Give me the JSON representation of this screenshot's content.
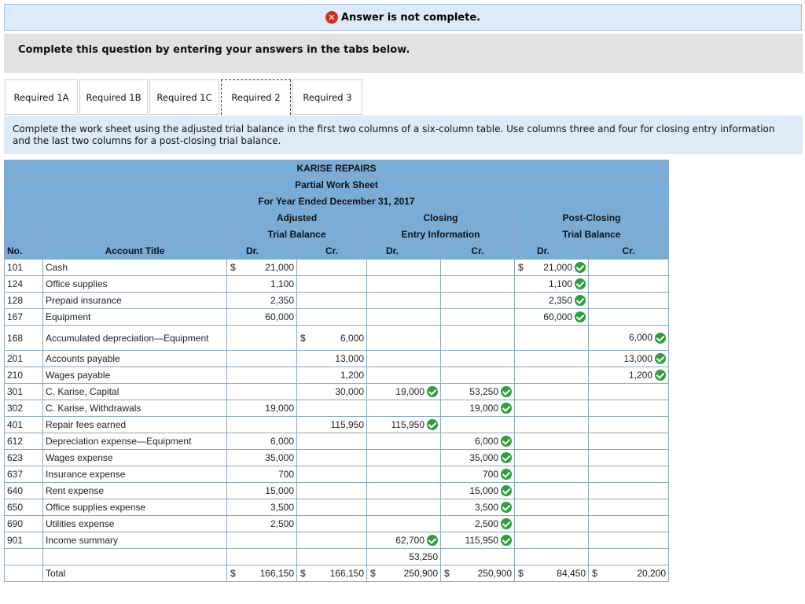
{
  "banner": {
    "icon": "close-circle-icon",
    "text": "Answer is not complete."
  },
  "question": {
    "text": "Complete this question by entering your answers in the tabs below."
  },
  "tabs": [
    {
      "label": "Required 1A",
      "active": false
    },
    {
      "label": "Required 1B",
      "active": false
    },
    {
      "label": "Required 1C",
      "active": false
    },
    {
      "label": "Required 2",
      "active": true
    },
    {
      "label": "Required 3",
      "active": false
    }
  ],
  "instructions": "Complete the work sheet using the adjusted trial balance in the first two columns of a six-column table. Use columns three and four for closing entry information and the last two columns for a post-closing trial balance.",
  "worksheet": {
    "company": "KARISE REPAIRS",
    "title": "Partial Work Sheet",
    "period": "For Year Ended December 31, 2017",
    "group_adjusted_1": "Adjusted",
    "group_adjusted_2": "Trial Balance",
    "group_closing_1": "Closing",
    "group_closing_2": "Entry Information",
    "group_post_1": "Post-Closing",
    "group_post_2": "Trial Balance",
    "col_no": "No.",
    "col_title": "Account Title",
    "col_dr": "Dr.",
    "col_cr": "Cr.",
    "rows": [
      {
        "no": "101",
        "title": "Cash",
        "adj_dr": "21,000",
        "adj_dr_dollar": "$",
        "adj_cr": "",
        "adj_cr_dollar": "",
        "cl_dr": "",
        "cl_dr_chk": false,
        "cl_cr": "",
        "cl_cr_chk": false,
        "pc_dr": "21,000",
        "pc_dr_dollar": "$",
        "pc_dr_chk": true,
        "pc_cr": "",
        "pc_cr_chk": false
      },
      {
        "no": "124",
        "title": "Office supplies",
        "adj_dr": "1,100",
        "adj_dr_dollar": "",
        "adj_cr": "",
        "adj_cr_dollar": "",
        "cl_dr": "",
        "cl_dr_chk": false,
        "cl_cr": "",
        "cl_cr_chk": false,
        "pc_dr": "1,100",
        "pc_dr_dollar": "",
        "pc_dr_chk": true,
        "pc_cr": "",
        "pc_cr_chk": false
      },
      {
        "no": "128",
        "title": "Prepaid insurance",
        "adj_dr": "2,350",
        "adj_dr_dollar": "",
        "adj_cr": "",
        "adj_cr_dollar": "",
        "cl_dr": "",
        "cl_dr_chk": false,
        "cl_cr": "",
        "cl_cr_chk": false,
        "pc_dr": "2,350",
        "pc_dr_dollar": "",
        "pc_dr_chk": true,
        "pc_cr": "",
        "pc_cr_chk": false
      },
      {
        "no": "167",
        "title": "Equipment",
        "adj_dr": "60,000",
        "adj_dr_dollar": "",
        "adj_cr": "",
        "adj_cr_dollar": "",
        "cl_dr": "",
        "cl_dr_chk": false,
        "cl_cr": "",
        "cl_cr_chk": false,
        "pc_dr": "60,000",
        "pc_dr_dollar": "",
        "pc_dr_chk": true,
        "pc_cr": "",
        "pc_cr_chk": false
      },
      {
        "no": "168",
        "title": "Accumulated depreciation—Equipment",
        "adj_dr": "",
        "adj_dr_dollar": "",
        "adj_cr": "6,000",
        "adj_cr_dollar": "$",
        "cl_dr": "",
        "cl_dr_chk": false,
        "cl_cr": "",
        "cl_cr_chk": false,
        "pc_dr": "",
        "pc_dr_dollar": "",
        "pc_dr_chk": false,
        "pc_cr": "6,000",
        "pc_cr_chk": true
      },
      {
        "no": "201",
        "title": "Accounts payable",
        "adj_dr": "",
        "adj_dr_dollar": "",
        "adj_cr": "13,000",
        "adj_cr_dollar": "",
        "cl_dr": "",
        "cl_dr_chk": false,
        "cl_cr": "",
        "cl_cr_chk": false,
        "pc_dr": "",
        "pc_dr_dollar": "",
        "pc_dr_chk": false,
        "pc_cr": "13,000",
        "pc_cr_chk": true
      },
      {
        "no": "210",
        "title": "Wages payable",
        "adj_dr": "",
        "adj_dr_dollar": "",
        "adj_cr": "1,200",
        "adj_cr_dollar": "",
        "cl_dr": "",
        "cl_dr_chk": false,
        "cl_cr": "",
        "cl_cr_chk": false,
        "pc_dr": "",
        "pc_dr_dollar": "",
        "pc_dr_chk": false,
        "pc_cr": "1,200",
        "pc_cr_chk": true
      },
      {
        "no": "301",
        "title": "C. Karise, Capital",
        "adj_dr": "",
        "adj_dr_dollar": "",
        "adj_cr": "30,000",
        "adj_cr_dollar": "",
        "cl_dr": "19,000",
        "cl_dr_chk": true,
        "cl_cr": "53,250",
        "cl_cr_chk": true,
        "pc_dr": "",
        "pc_dr_dollar": "",
        "pc_dr_chk": false,
        "pc_cr": "",
        "pc_cr_chk": false
      },
      {
        "no": "302",
        "title": "C. Karise, Withdrawals",
        "adj_dr": "19,000",
        "adj_dr_dollar": "",
        "adj_cr": "",
        "adj_cr_dollar": "",
        "cl_dr": "",
        "cl_dr_chk": false,
        "cl_cr": "19,000",
        "cl_cr_chk": true,
        "pc_dr": "",
        "pc_dr_dollar": "",
        "pc_dr_chk": false,
        "pc_cr": "",
        "pc_cr_chk": false
      },
      {
        "no": "401",
        "title": "Repair fees earned",
        "adj_dr": "",
        "adj_dr_dollar": "",
        "adj_cr": "115,950",
        "adj_cr_dollar": "",
        "cl_dr": "115,950",
        "cl_dr_chk": true,
        "cl_cr": "",
        "cl_cr_chk": false,
        "pc_dr": "",
        "pc_dr_dollar": "",
        "pc_dr_chk": false,
        "pc_cr": "",
        "pc_cr_chk": false
      },
      {
        "no": "612",
        "title": "Depreciation expense—Equipment",
        "adj_dr": "6,000",
        "adj_dr_dollar": "",
        "adj_cr": "",
        "adj_cr_dollar": "",
        "cl_dr": "",
        "cl_dr_chk": false,
        "cl_cr": "6,000",
        "cl_cr_chk": true,
        "pc_dr": "",
        "pc_dr_dollar": "",
        "pc_dr_chk": false,
        "pc_cr": "",
        "pc_cr_chk": false
      },
      {
        "no": "623",
        "title": "Wages expense",
        "adj_dr": "35,000",
        "adj_dr_dollar": "",
        "adj_cr": "",
        "adj_cr_dollar": "",
        "cl_dr": "",
        "cl_dr_chk": false,
        "cl_cr": "35,000",
        "cl_cr_chk": true,
        "pc_dr": "",
        "pc_dr_dollar": "",
        "pc_dr_chk": false,
        "pc_cr": "",
        "pc_cr_chk": false
      },
      {
        "no": "637",
        "title": "Insurance expense",
        "adj_dr": "700",
        "adj_dr_dollar": "",
        "adj_cr": "",
        "adj_cr_dollar": "",
        "cl_dr": "",
        "cl_dr_chk": false,
        "cl_cr": "700",
        "cl_cr_chk": true,
        "pc_dr": "",
        "pc_dr_dollar": "",
        "pc_dr_chk": false,
        "pc_cr": "",
        "pc_cr_chk": false
      },
      {
        "no": "640",
        "title": "Rent expense",
        "adj_dr": "15,000",
        "adj_dr_dollar": "",
        "adj_cr": "",
        "adj_cr_dollar": "",
        "cl_dr": "",
        "cl_dr_chk": false,
        "cl_cr": "15,000",
        "cl_cr_chk": true,
        "pc_dr": "",
        "pc_dr_dollar": "",
        "pc_dr_chk": false,
        "pc_cr": "",
        "pc_cr_chk": false
      },
      {
        "no": "650",
        "title": "Office supplies expense",
        "adj_dr": "3,500",
        "adj_dr_dollar": "",
        "adj_cr": "",
        "adj_cr_dollar": "",
        "cl_dr": "",
        "cl_dr_chk": false,
        "cl_cr": "3,500",
        "cl_cr_chk": true,
        "pc_dr": "",
        "pc_dr_dollar": "",
        "pc_dr_chk": false,
        "pc_cr": "",
        "pc_cr_chk": false
      },
      {
        "no": "690",
        "title": "Utilities expense",
        "adj_dr": "2,500",
        "adj_dr_dollar": "",
        "adj_cr": "",
        "adj_cr_dollar": "",
        "cl_dr": "",
        "cl_dr_chk": false,
        "cl_cr": "2,500",
        "cl_cr_chk": true,
        "pc_dr": "",
        "pc_dr_dollar": "",
        "pc_dr_chk": false,
        "pc_cr": "",
        "pc_cr_chk": false
      },
      {
        "no": "901",
        "title": "Income summary",
        "adj_dr": "",
        "adj_dr_dollar": "",
        "adj_cr": "",
        "adj_cr_dollar": "",
        "cl_dr": "62,700",
        "cl_dr_chk": true,
        "cl_cr": "115,950",
        "cl_cr_chk": true,
        "pc_dr": "",
        "pc_dr_dollar": "",
        "pc_dr_chk": false,
        "pc_cr": "",
        "pc_cr_chk": false
      },
      {
        "no": "",
        "title": "",
        "adj_dr": "",
        "adj_dr_dollar": "",
        "adj_cr": "",
        "adj_cr_dollar": "",
        "cl_dr": "53,250",
        "cl_dr_chk": false,
        "cl_cr": "",
        "cl_cr_chk": false,
        "pc_dr": "",
        "pc_dr_dollar": "",
        "pc_dr_chk": false,
        "pc_cr": "",
        "pc_cr_chk": false
      }
    ],
    "total": {
      "title": "Total",
      "adj_dr": "166,150",
      "adj_cr": "166,150",
      "cl_dr": "250,900",
      "cl_cr": "250,900",
      "pc_dr": "84,450",
      "pc_cr": "20,200",
      "dollar": "$"
    }
  },
  "colors": {
    "header_blue": "#7aacd8",
    "banner_bg": "#dcebf7",
    "check_green": "#2e9e3f",
    "error_red": "#d62d20"
  }
}
